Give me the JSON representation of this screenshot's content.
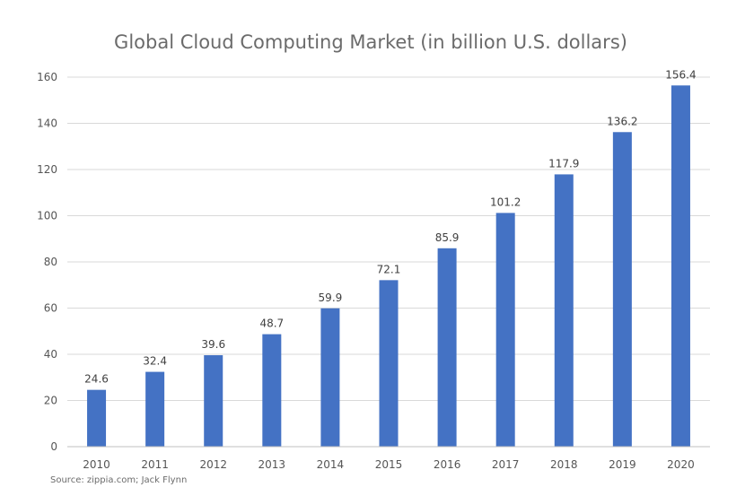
{
  "chart_data": {
    "type": "bar",
    "title": "Global Cloud Computing Market (in billion U.S. dollars)",
    "categories": [
      "2010",
      "2011",
      "2012",
      "2013",
      "2014",
      "2015",
      "2016",
      "2017",
      "2018",
      "2019",
      "2020"
    ],
    "values": [
      24.6,
      32.4,
      39.6,
      48.7,
      59.9,
      72.1,
      85.9,
      101.2,
      117.9,
      136.2,
      156.4
    ],
    "value_labels": [
      "24.6",
      "32.4",
      "39.6",
      "48.7",
      "59.9",
      "72.1",
      "85.9",
      "101.2",
      "117.9",
      "136.2",
      "156.4"
    ],
    "ylim": [
      0,
      160
    ],
    "yticks": [
      0,
      20,
      40,
      60,
      80,
      100,
      120,
      140,
      160
    ],
    "grid": true,
    "legend": "none",
    "colors": {
      "bar": "#4472c4",
      "grid": "#d9d9d9",
      "axis": "#bfbfbf"
    }
  },
  "source": "Source: zippia.com; Jack Flynn"
}
